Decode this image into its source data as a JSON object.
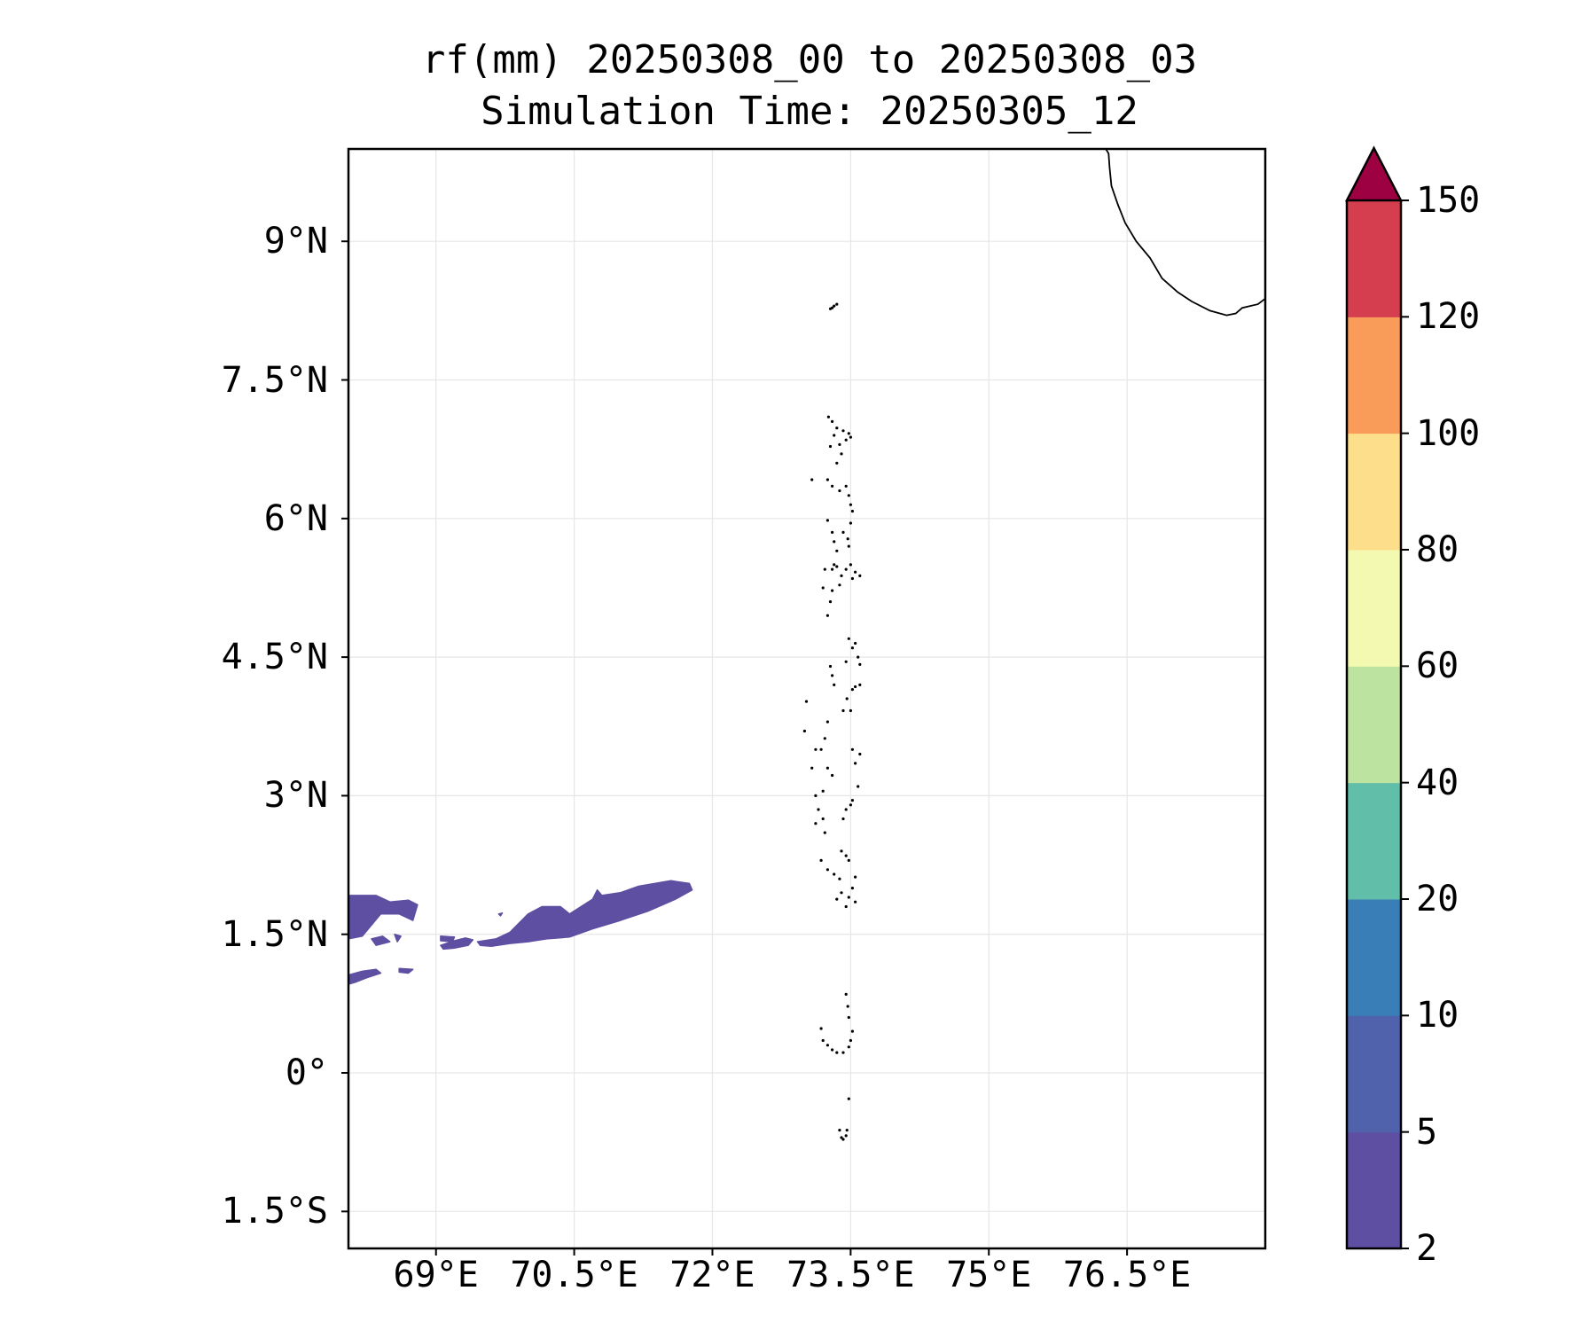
{
  "title": {
    "line1": "rf(mm) 20250308_00 to 20250308_03",
    "line2": "Simulation Time: 20250305_12"
  },
  "map": {
    "lon_range": [
      68.05,
      78.0
    ],
    "lat_range": [
      -1.9,
      10.0
    ],
    "x_ticks": [
      {
        "lon": 69.0,
        "label": "69°E"
      },
      {
        "lon": 70.5,
        "label": "70.5°E"
      },
      {
        "lon": 72.0,
        "label": "72°E"
      },
      {
        "lon": 73.5,
        "label": "73.5°E"
      },
      {
        "lon": 75.0,
        "label": "75°E"
      },
      {
        "lon": 76.5,
        "label": "76.5°E"
      }
    ],
    "y_ticks": [
      {
        "lat": 9.0,
        "label": "9°N"
      },
      {
        "lat": 7.5,
        "label": "7.5°N"
      },
      {
        "lat": 6.0,
        "label": "6°N"
      },
      {
        "lat": 4.5,
        "label": "4.5°N"
      },
      {
        "lat": 3.0,
        "label": "3°N"
      },
      {
        "lat": 1.5,
        "label": "1.5°N"
      },
      {
        "lat": 0.0,
        "label": "0°"
      },
      {
        "lat": -1.5,
        "label": "1.5°S"
      }
    ],
    "grid": true,
    "coastline_color": "#000000",
    "rain_color": "#5e4fa2",
    "rain_category": "2–5 mm",
    "rain_areas": [
      [
        [
          68.05,
          1.92
        ],
        [
          68.35,
          1.92
        ],
        [
          68.5,
          1.85
        ],
        [
          68.7,
          1.87
        ],
        [
          68.8,
          1.82
        ],
        [
          68.75,
          1.65
        ],
        [
          68.6,
          1.72
        ],
        [
          68.4,
          1.72
        ],
        [
          68.3,
          1.6
        ],
        [
          68.2,
          1.48
        ],
        [
          68.05,
          1.45
        ]
      ],
      [
        [
          68.05,
          1.06
        ],
        [
          68.2,
          1.1
        ],
        [
          68.35,
          1.12
        ],
        [
          68.4,
          1.08
        ],
        [
          68.25,
          1.03
        ],
        [
          68.12,
          0.98
        ],
        [
          68.05,
          0.96
        ]
      ],
      [
        [
          68.6,
          1.13
        ],
        [
          68.75,
          1.12
        ],
        [
          68.7,
          1.08
        ],
        [
          68.6,
          1.09
        ]
      ],
      [
        [
          68.3,
          1.45
        ],
        [
          68.42,
          1.48
        ],
        [
          68.5,
          1.42
        ],
        [
          68.35,
          1.38
        ]
      ],
      [
        [
          68.55,
          1.5
        ],
        [
          68.62,
          1.48
        ],
        [
          68.58,
          1.42
        ]
      ],
      [
        [
          69.05,
          1.48
        ],
        [
          69.2,
          1.47
        ],
        [
          69.18,
          1.42
        ],
        [
          69.05,
          1.43
        ]
      ],
      [
        [
          69.05,
          1.38
        ],
        [
          69.2,
          1.43
        ],
        [
          69.32,
          1.46
        ],
        [
          69.4,
          1.44
        ],
        [
          69.35,
          1.38
        ],
        [
          69.2,
          1.35
        ],
        [
          69.08,
          1.34
        ]
      ],
      [
        [
          69.45,
          1.42
        ],
        [
          69.65,
          1.45
        ],
        [
          69.8,
          1.52
        ],
        [
          69.9,
          1.62
        ],
        [
          70.0,
          1.72
        ],
        [
          70.15,
          1.8
        ],
        [
          70.35,
          1.8
        ],
        [
          70.45,
          1.72
        ],
        [
          70.7,
          1.88
        ],
        [
          70.75,
          1.98
        ],
        [
          70.8,
          1.92
        ],
        [
          71.0,
          1.95
        ],
        [
          71.2,
          2.02
        ],
        [
          71.55,
          2.08
        ],
        [
          71.75,
          2.05
        ],
        [
          71.78,
          1.98
        ],
        [
          71.6,
          1.88
        ],
        [
          71.3,
          1.75
        ],
        [
          71.0,
          1.65
        ],
        [
          70.7,
          1.56
        ],
        [
          70.45,
          1.47
        ],
        [
          70.2,
          1.45
        ],
        [
          70.0,
          1.42
        ],
        [
          69.8,
          1.4
        ],
        [
          69.6,
          1.37
        ],
        [
          69.48,
          1.38
        ]
      ],
      [
        [
          69.68,
          1.72
        ],
        [
          69.72,
          1.73
        ],
        [
          69.7,
          1.7
        ]
      ]
    ],
    "coastline_india": [
      [
        76.27,
        10.0
      ],
      [
        76.3,
        9.95
      ],
      [
        76.31,
        9.8
      ],
      [
        76.33,
        9.6
      ],
      [
        76.4,
        9.4
      ],
      [
        76.48,
        9.2
      ],
      [
        76.6,
        9.0
      ],
      [
        76.75,
        8.82
      ],
      [
        76.88,
        8.6
      ],
      [
        77.05,
        8.45
      ],
      [
        77.2,
        8.35
      ],
      [
        77.4,
        8.25
      ],
      [
        77.58,
        8.2
      ],
      [
        77.68,
        8.22
      ],
      [
        77.75,
        8.28
      ],
      [
        77.92,
        8.32
      ],
      [
        78.0,
        8.38
      ]
    ],
    "islands": [
      [
        73.32,
        8.3
      ],
      [
        73.35,
        8.32
      ],
      [
        73.3,
        8.28
      ],
      [
        73.28,
        8.27
      ],
      [
        73.26,
        7.1
      ],
      [
        73.3,
        7.05
      ],
      [
        73.35,
        6.98
      ],
      [
        73.42,
        6.95
      ],
      [
        73.48,
        6.92
      ],
      [
        73.5,
        6.88
      ],
      [
        73.45,
        6.85
      ],
      [
        73.38,
        6.8
      ],
      [
        73.32,
        6.9
      ],
      [
        73.28,
        6.78
      ],
      [
        73.4,
        6.7
      ],
      [
        73.35,
        6.6
      ],
      [
        73.08,
        6.42
      ],
      [
        73.25,
        6.42
      ],
      [
        73.3,
        6.35
      ],
      [
        73.38,
        6.3
      ],
      [
        73.45,
        6.35
      ],
      [
        73.48,
        6.25
      ],
      [
        73.5,
        6.15
      ],
      [
        73.52,
        6.08
      ],
      [
        73.25,
        5.98
      ],
      [
        73.3,
        5.85
      ],
      [
        73.32,
        5.75
      ],
      [
        73.35,
        5.65
      ],
      [
        73.32,
        5.5
      ],
      [
        73.42,
        5.85
      ],
      [
        73.47,
        5.78
      ],
      [
        73.5,
        5.95
      ],
      [
        73.48,
        5.7
      ],
      [
        73.22,
        5.45
      ],
      [
        73.3,
        5.45
      ],
      [
        73.35,
        5.48
      ],
      [
        73.4,
        5.38
      ],
      [
        73.38,
        5.28
      ],
      [
        73.3,
        5.22
      ],
      [
        73.2,
        5.25
      ],
      [
        73.28,
        5.1
      ],
      [
        73.25,
        4.95
      ],
      [
        73.45,
        5.45
      ],
      [
        73.5,
        5.5
      ],
      [
        73.55,
        5.42
      ],
      [
        73.6,
        5.38
      ],
      [
        73.52,
        5.35
      ],
      [
        73.48,
        4.7
      ],
      [
        73.52,
        4.6
      ],
      [
        73.55,
        4.65
      ],
      [
        73.58,
        4.5
      ],
      [
        73.6,
        4.42
      ],
      [
        73.45,
        4.45
      ],
      [
        73.55,
        4.18
      ],
      [
        73.6,
        4.2
      ],
      [
        73.52,
        4.15
      ],
      [
        73.46,
        4.05
      ],
      [
        73.5,
        3.92
      ],
      [
        73.42,
        3.92
      ],
      [
        73.28,
        4.4
      ],
      [
        73.3,
        4.3
      ],
      [
        73.32,
        4.2
      ],
      [
        73.02,
        4.02
      ],
      [
        73.0,
        3.7
      ],
      [
        73.12,
        3.5
      ],
      [
        73.18,
        3.5
      ],
      [
        73.22,
        3.62
      ],
      [
        73.25,
        3.8
      ],
      [
        73.08,
        3.3
      ],
      [
        73.52,
        3.5
      ],
      [
        73.6,
        3.45
      ],
      [
        73.55,
        3.35
      ],
      [
        73.58,
        3.1
      ],
      [
        73.5,
        2.9
      ],
      [
        73.45,
        2.85
      ],
      [
        73.42,
        2.75
      ],
      [
        73.52,
        2.95
      ],
      [
        73.25,
        3.3
      ],
      [
        73.3,
        3.22
      ],
      [
        73.2,
        3.05
      ],
      [
        73.12,
        3.0
      ],
      [
        73.15,
        2.85
      ],
      [
        73.2,
        2.75
      ],
      [
        73.12,
        2.7
      ],
      [
        73.22,
        2.6
      ],
      [
        73.4,
        2.4
      ],
      [
        73.45,
        2.35
      ],
      [
        73.48,
        2.3
      ],
      [
        73.18,
        2.3
      ],
      [
        73.25,
        2.2
      ],
      [
        73.32,
        2.15
      ],
      [
        73.38,
        2.1
      ],
      [
        73.55,
        2.12
      ],
      [
        73.52,
        2.0
      ],
      [
        73.48,
        1.9
      ],
      [
        73.45,
        1.8
      ],
      [
        73.55,
        1.85
      ],
      [
        73.4,
        1.95
      ],
      [
        73.35,
        1.88
      ],
      [
        73.45,
        0.85
      ],
      [
        73.47,
        0.72
      ],
      [
        73.48,
        0.6
      ],
      [
        73.52,
        0.45
      ],
      [
        73.5,
        0.35
      ],
      [
        73.18,
        0.48
      ],
      [
        73.2,
        0.35
      ],
      [
        73.25,
        0.3
      ],
      [
        73.3,
        0.25
      ],
      [
        73.35,
        0.22
      ],
      [
        73.42,
        0.22
      ],
      [
        73.48,
        0.28
      ],
      [
        73.48,
        -0.28
      ],
      [
        73.38,
        -0.62
      ],
      [
        73.4,
        -0.7
      ],
      [
        73.42,
        -0.72
      ],
      [
        73.45,
        -0.68
      ],
      [
        73.46,
        -0.62
      ]
    ]
  },
  "colorbar": {
    "levels": [
      "2",
      "5",
      "10",
      "20",
      "40",
      "60",
      "80",
      "100",
      "120",
      "150"
    ],
    "colors": [
      "#5e4fa2",
      "#4f62ab",
      "#3a7eb8",
      "#61bea8",
      "#bde3a1",
      "#f3f9b0",
      "#fddf8b",
      "#f99c59",
      "#d53e4f"
    ],
    "extend_color": "#9e0142",
    "extend": "max"
  }
}
